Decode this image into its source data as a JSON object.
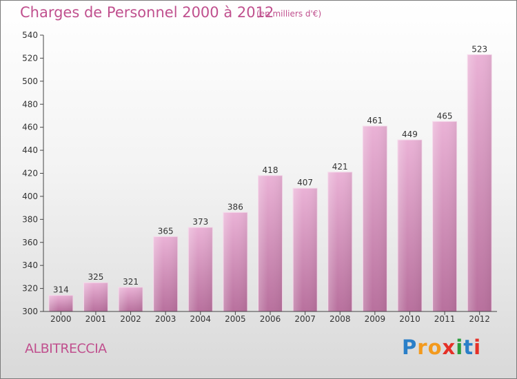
{
  "title": "Charges de Personnel 2000 à 2012",
  "subtitle": "(en milliers d'€)",
  "commune": "ALBITRECCIA",
  "logo": {
    "letters": [
      "P",
      "r",
      "o",
      "x",
      "i",
      "t",
      "i"
    ],
    "colors": [
      "#2a7fc8",
      "#f39a1e",
      "#f39a1e",
      "#e53027",
      "#2a9d3c",
      "#2a7fc8",
      "#e53027"
    ]
  },
  "colors": {
    "bar_top": "#eab2d6",
    "bar_bottom": "#b8709d",
    "text": "#c0508e"
  },
  "chart_data": {
    "type": "bar",
    "categories": [
      "2000",
      "2001",
      "2002",
      "2003",
      "2004",
      "2005",
      "2006",
      "2007",
      "2008",
      "2009",
      "2010",
      "2011",
      "2012"
    ],
    "values": [
      314,
      325,
      321,
      365,
      373,
      386,
      418,
      407,
      421,
      461,
      449,
      465,
      523
    ],
    "data_labels": [
      "314",
      "325",
      "321",
      "365",
      "373",
      "386",
      "418",
      "407",
      "421",
      "461",
      "449",
      "465",
      "523"
    ],
    "yticks": [
      "300",
      "320",
      "340",
      "360",
      "380",
      "400",
      "420",
      "440",
      "460",
      "480",
      "500",
      "520",
      "540"
    ],
    "ylim": [
      300,
      540
    ],
    "ytick_step": 20,
    "xlabel": "",
    "ylabel": "",
    "grid": false,
    "legend": "none"
  }
}
